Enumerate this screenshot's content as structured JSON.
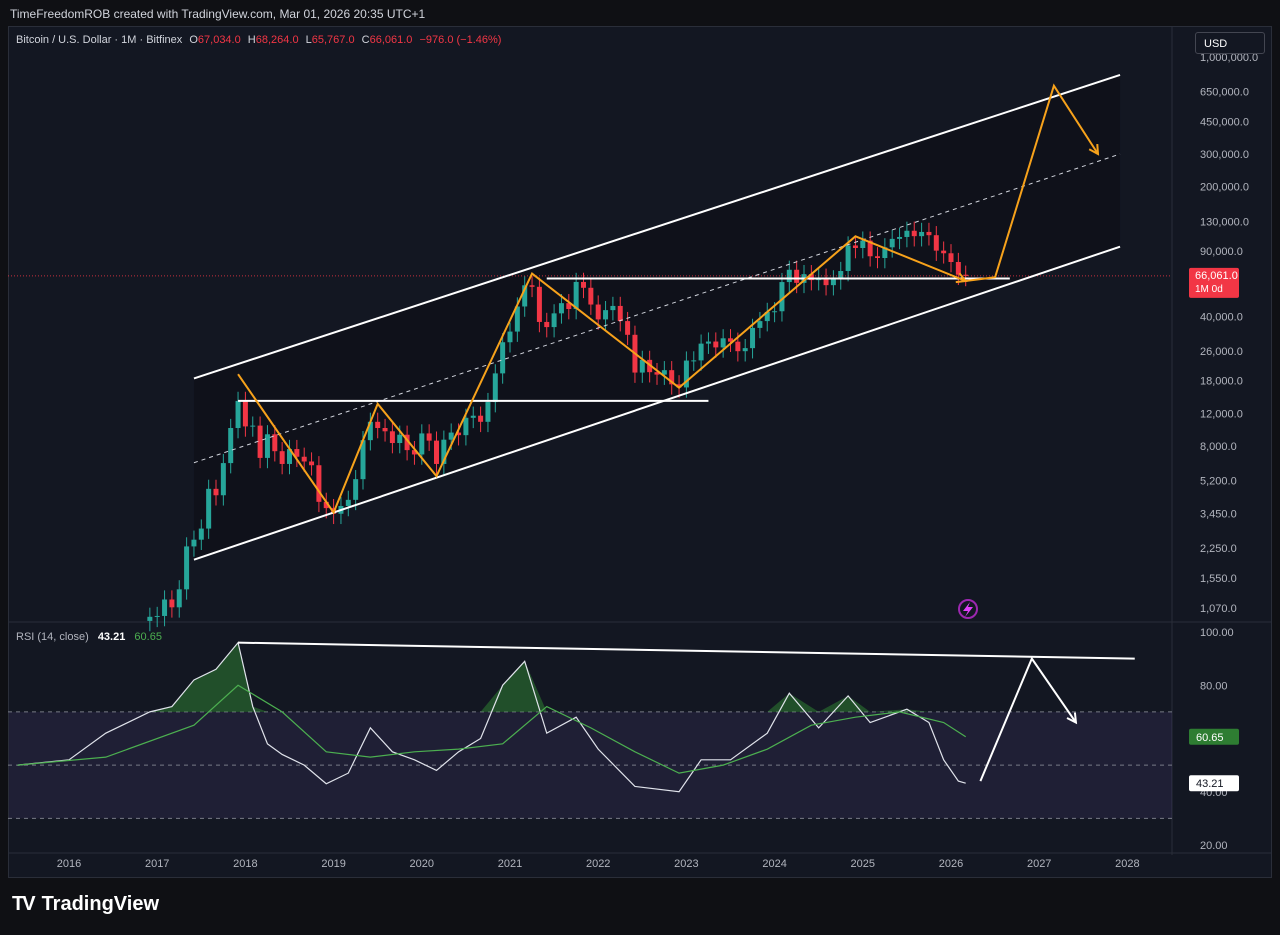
{
  "header": {
    "created_by": "TimeFreedomROB created with TradingView.com, Mar 01, 2026 20:35 UTC+1"
  },
  "legend": {
    "symbol": "Bitcoin / U.S. Dollar · 1M · Bitfinex",
    "open_label": "O",
    "open": "67,034.0",
    "high_label": "H",
    "high": "68,264.0",
    "low_label": "L",
    "low": "65,767.0",
    "close_label": "C",
    "close": "66,061.0",
    "change": "−976.0 (−1.46%)"
  },
  "currency_button": "USD",
  "last_price": {
    "value": "66,061.0",
    "countdown": "1M 0d",
    "color": "#f23645"
  },
  "rsi_legend": {
    "label": "RSI (14, close)",
    "rsi": "43.21",
    "ma": "60.65"
  },
  "rsi_badges": {
    "ma": "60.65",
    "rsi": "43.21"
  },
  "price_axis": [
    "1,000,000.0",
    "650,000.0",
    "450,000.0",
    "300,000.0",
    "200,000.0",
    "130,000.0",
    "90,000.0",
    "40,000.0",
    "26,000.0",
    "18,000.0",
    "12,000.0",
    "8,000.0",
    "5,200.0",
    "3,450.0",
    "2,250.0",
    "1,550.0",
    "1,070.0"
  ],
  "rsi_axis": [
    "100.00",
    "80.00",
    "40.00",
    "20.00"
  ],
  "time_axis": [
    "2016",
    "2017",
    "2018",
    "2019",
    "2020",
    "2021",
    "2022",
    "2023",
    "2024",
    "2025",
    "2026",
    "2027",
    "2028"
  ],
  "brand": {
    "name": "TradingView"
  },
  "colors": {
    "up": "#26a69a",
    "down": "#f23645",
    "projection": "#f7a21b",
    "channel": "#ffffff",
    "rsi_line": "#e0e3eb",
    "rsi_ma": "#4caf50",
    "rsi_band": "#7e57c2"
  },
  "chart_data": [
    {
      "type": "candlestick",
      "title": "Bitcoin / U.S. Dollar · 1M · Bitfinex",
      "yscale": "log",
      "ylim": [
        900,
        1000000
      ],
      "x_range": [
        "2015-06",
        "2028-06"
      ],
      "candles_approx_close_by_month": [
        [
          "2016-12",
          960
        ],
        [
          "2017-01",
          970
        ],
        [
          "2017-02",
          1190
        ],
        [
          "2017-03",
          1080
        ],
        [
          "2017-04",
          1350
        ],
        [
          "2017-05",
          2300
        ],
        [
          "2017-06",
          2500
        ],
        [
          "2017-07",
          2870
        ],
        [
          "2017-08",
          4700
        ],
        [
          "2017-09",
          4340
        ],
        [
          "2017-10",
          6470
        ],
        [
          "2017-11",
          10000
        ],
        [
          "2017-12",
          14000
        ],
        [
          "2018-01",
          10200
        ],
        [
          "2018-02",
          10300
        ],
        [
          "2018-03",
          6900
        ],
        [
          "2018-04",
          9250
        ],
        [
          "2018-05",
          7500
        ],
        [
          "2018-06",
          6400
        ],
        [
          "2018-07",
          7700
        ],
        [
          "2018-08",
          7000
        ],
        [
          "2018-09",
          6600
        ],
        [
          "2018-10",
          6300
        ],
        [
          "2018-11",
          4000
        ],
        [
          "2018-12",
          3700
        ],
        [
          "2019-01",
          3450
        ],
        [
          "2019-02",
          3800
        ],
        [
          "2019-03",
          4100
        ],
        [
          "2019-04",
          5300
        ],
        [
          "2019-05",
          8600
        ],
        [
          "2019-06",
          10800
        ],
        [
          "2019-07",
          10000
        ],
        [
          "2019-08",
          9600
        ],
        [
          "2019-09",
          8300
        ],
        [
          "2019-10",
          9200
        ],
        [
          "2019-11",
          7600
        ],
        [
          "2019-12",
          7200
        ],
        [
          "2020-01",
          9350
        ],
        [
          "2020-02",
          8550
        ],
        [
          "2020-03",
          6400
        ],
        [
          "2020-04",
          8650
        ],
        [
          "2020-05",
          9450
        ],
        [
          "2020-06",
          9150
        ],
        [
          "2020-07",
          11350
        ],
        [
          "2020-08",
          11650
        ],
        [
          "2020-09",
          10800
        ],
        [
          "2020-10",
          13800
        ],
        [
          "2020-11",
          19700
        ],
        [
          "2020-12",
          29000
        ],
        [
          "2021-01",
          33100
        ],
        [
          "2021-02",
          45200
        ],
        [
          "2021-03",
          58800
        ],
        [
          "2021-04",
          57700
        ],
        [
          "2021-05",
          37300
        ],
        [
          "2021-06",
          35000
        ],
        [
          "2021-07",
          41500
        ],
        [
          "2021-08",
          47100
        ],
        [
          "2021-09",
          43800
        ],
        [
          "2021-10",
          61300
        ],
        [
          "2021-11",
          57000
        ],
        [
          "2021-12",
          46300
        ],
        [
          "2022-01",
          38500
        ],
        [
          "2022-02",
          43200
        ],
        [
          "2022-03",
          45500
        ],
        [
          "2022-04",
          37700
        ],
        [
          "2022-05",
          31800
        ],
        [
          "2022-06",
          19900
        ],
        [
          "2022-07",
          23300
        ],
        [
          "2022-08",
          20000
        ],
        [
          "2022-09",
          19400
        ],
        [
          "2022-10",
          20500
        ],
        [
          "2022-11",
          17200
        ],
        [
          "2022-12",
          16550
        ],
        [
          "2023-01",
          23100
        ],
        [
          "2023-02",
          23150
        ],
        [
          "2023-03",
          28500
        ],
        [
          "2023-04",
          29250
        ],
        [
          "2023-05",
          27200
        ],
        [
          "2023-06",
          30450
        ],
        [
          "2023-07",
          29200
        ],
        [
          "2023-08",
          25950
        ],
        [
          "2023-09",
          26950
        ],
        [
          "2023-10",
          34650
        ],
        [
          "2023-11",
          37700
        ],
        [
          "2023-12",
          42250
        ],
        [
          "2024-01",
          42600
        ],
        [
          "2024-02",
          61200
        ],
        [
          "2024-03",
          71300
        ],
        [
          "2024-04",
          60600
        ],
        [
          "2024-05",
          67500
        ],
        [
          "2024-06",
          62700
        ],
        [
          "2024-07",
          64600
        ],
        [
          "2024-08",
          58900
        ],
        [
          "2024-09",
          63300
        ],
        [
          "2024-10",
          70200
        ],
        [
          "2024-11",
          96400
        ],
        [
          "2024-12",
          93400
        ],
        [
          "2025-01",
          102400
        ],
        [
          "2025-02",
          84300
        ],
        [
          "2025-03",
          82500
        ],
        [
          "2025-04",
          94200
        ],
        [
          "2025-05",
          104600
        ],
        [
          "2025-06",
          107100
        ],
        [
          "2025-07",
          115700
        ],
        [
          "2025-08",
          108200
        ],
        [
          "2025-09",
          114000
        ],
        [
          "2025-10",
          109500
        ],
        [
          "2025-11",
          90400
        ],
        [
          "2025-12",
          87500
        ],
        [
          "2026-01",
          78500
        ],
        [
          "2026-02",
          67034
        ],
        [
          "2026-03",
          66061
        ]
      ],
      "last_candle": {
        "open": 67034.0,
        "high": 68264.0,
        "low": 65767.0,
        "close": 66061.0,
        "change": -976.0,
        "change_pct": -1.46
      },
      "ascending_channel": {
        "upper": [
          [
            "2017-06",
            18500
          ],
          [
            "2027-12",
            800000
          ]
        ],
        "middle_dashed": [
          [
            "2017-06",
            6500
          ],
          [
            "2027-12",
            300000
          ]
        ],
        "lower": [
          [
            "2017-06",
            1950
          ],
          [
            "2027-12",
            95000
          ]
        ]
      },
      "horizontal_levels": [
        {
          "value": 14000,
          "from": "2017-12",
          "to": "2023-04"
        },
        {
          "value": 64000,
          "from": "2021-06",
          "to": "2026-09"
        }
      ],
      "projection_path": [
        [
          "2017-12",
          19500
        ],
        [
          "2019-01",
          3500
        ],
        [
          "2019-07",
          13500
        ],
        [
          "2020-03",
          5500
        ],
        [
          "2021-04",
          68000
        ],
        [
          "2022-12",
          16500
        ],
        [
          "2024-12",
          108000
        ],
        [
          "2026-03",
          62000
        ],
        [
          "2026-07",
          65000
        ],
        [
          "2027-03",
          700000
        ],
        [
          "2027-09",
          300000
        ]
      ]
    },
    {
      "type": "line",
      "title": "RSI (14, close)",
      "ylim": [
        20,
        100
      ],
      "bands": {
        "upper": 70,
        "middle": 50,
        "lower": 30
      },
      "last": {
        "rsi": 43.21,
        "ma": 60.65
      },
      "rsi_trendline": [
        [
          "2017-12",
          96
        ],
        [
          "2028-02",
          90
        ]
      ],
      "rsi_projection": [
        [
          "2026-05",
          44
        ],
        [
          "2026-12",
          90
        ],
        [
          "2027-06",
          66
        ]
      ],
      "series": [
        {
          "name": "RSI",
          "values_by_month": [
            [
              "2015-06",
              50
            ],
            [
              "2016-01",
              52
            ],
            [
              "2016-06",
              62
            ],
            [
              "2016-12",
              70
            ],
            [
              "2017-03",
              72
            ],
            [
              "2017-06",
              82
            ],
            [
              "2017-09",
              86
            ],
            [
              "2017-12",
              96
            ],
            [
              "2018-02",
              72
            ],
            [
              "2018-04",
              58
            ],
            [
              "2018-06",
              54
            ],
            [
              "2018-09",
              50
            ],
            [
              "2018-12",
              43
            ],
            [
              "2019-03",
              47
            ],
            [
              "2019-06",
              64
            ],
            [
              "2019-09",
              55
            ],
            [
              "2019-12",
              52
            ],
            [
              "2020-03",
              48
            ],
            [
              "2020-06",
              55
            ],
            [
              "2020-09",
              60
            ],
            [
              "2020-12",
              80
            ],
            [
              "2021-03",
              89
            ],
            [
              "2021-06",
              62
            ],
            [
              "2021-10",
              68
            ],
            [
              "2022-01",
              56
            ],
            [
              "2022-06",
              42
            ],
            [
              "2022-12",
              40
            ],
            [
              "2023-03",
              52
            ],
            [
              "2023-07",
              52
            ],
            [
              "2023-12",
              62
            ],
            [
              "2024-03",
              77
            ],
            [
              "2024-07",
              64
            ],
            [
              "2024-11",
              76
            ],
            [
              "2025-02",
              66
            ],
            [
              "2025-07",
              71
            ],
            [
              "2025-10",
              66
            ],
            [
              "2025-12",
              52
            ],
            [
              "2026-02",
              44
            ],
            [
              "2026-03",
              43.21
            ]
          ]
        },
        {
          "name": "RSI MA",
          "values_by_month": [
            [
              "2015-06",
              50
            ],
            [
              "2016-06",
              53
            ],
            [
              "2017-06",
              65
            ],
            [
              "2017-12",
              80
            ],
            [
              "2018-06",
              70
            ],
            [
              "2018-12",
              55
            ],
            [
              "2019-06",
              53
            ],
            [
              "2019-12",
              55
            ],
            [
              "2020-06",
              56
            ],
            [
              "2020-12",
              58
            ],
            [
              "2021-06",
              72
            ],
            [
              "2021-12",
              64
            ],
            [
              "2022-06",
              55
            ],
            [
              "2022-12",
              47
            ],
            [
              "2023-06",
              50
            ],
            [
              "2023-12",
              56
            ],
            [
              "2024-06",
              65
            ],
            [
              "2024-12",
              68
            ],
            [
              "2025-06",
              70
            ],
            [
              "2025-12",
              66
            ],
            [
              "2026-03",
              60.65
            ]
          ]
        }
      ]
    }
  ]
}
